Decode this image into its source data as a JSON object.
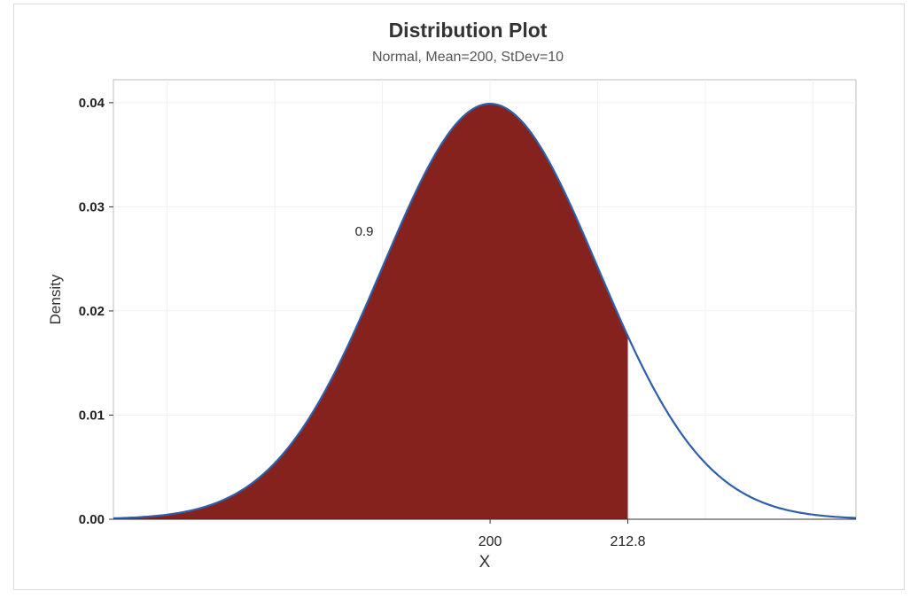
{
  "chart_data": {
    "type": "area",
    "title": "Distribution Plot",
    "subtitle": "Normal, Mean=200, StDev=10",
    "xlabel": "X",
    "ylabel": "Density",
    "distribution": {
      "name": "Normal",
      "mean": 200,
      "stdev": 10
    },
    "xlim": [
      165,
      234
    ],
    "ylim": [
      0,
      0.0422
    ],
    "y_ticks": [
      "0.00",
      "0.01",
      "0.02",
      "0.03",
      "0.04"
    ],
    "y_tick_values": [
      0,
      0.01,
      0.02,
      0.03,
      0.04
    ],
    "x_ticks": [
      "200",
      "212.8"
    ],
    "x_tick_values": [
      200,
      212.8
    ],
    "shaded_region": {
      "from": 165,
      "to": 212.8,
      "probability_label": "0.9",
      "color": "#86221e"
    },
    "curve_color": "#2e5fa8",
    "grid": true,
    "legend": "none"
  }
}
